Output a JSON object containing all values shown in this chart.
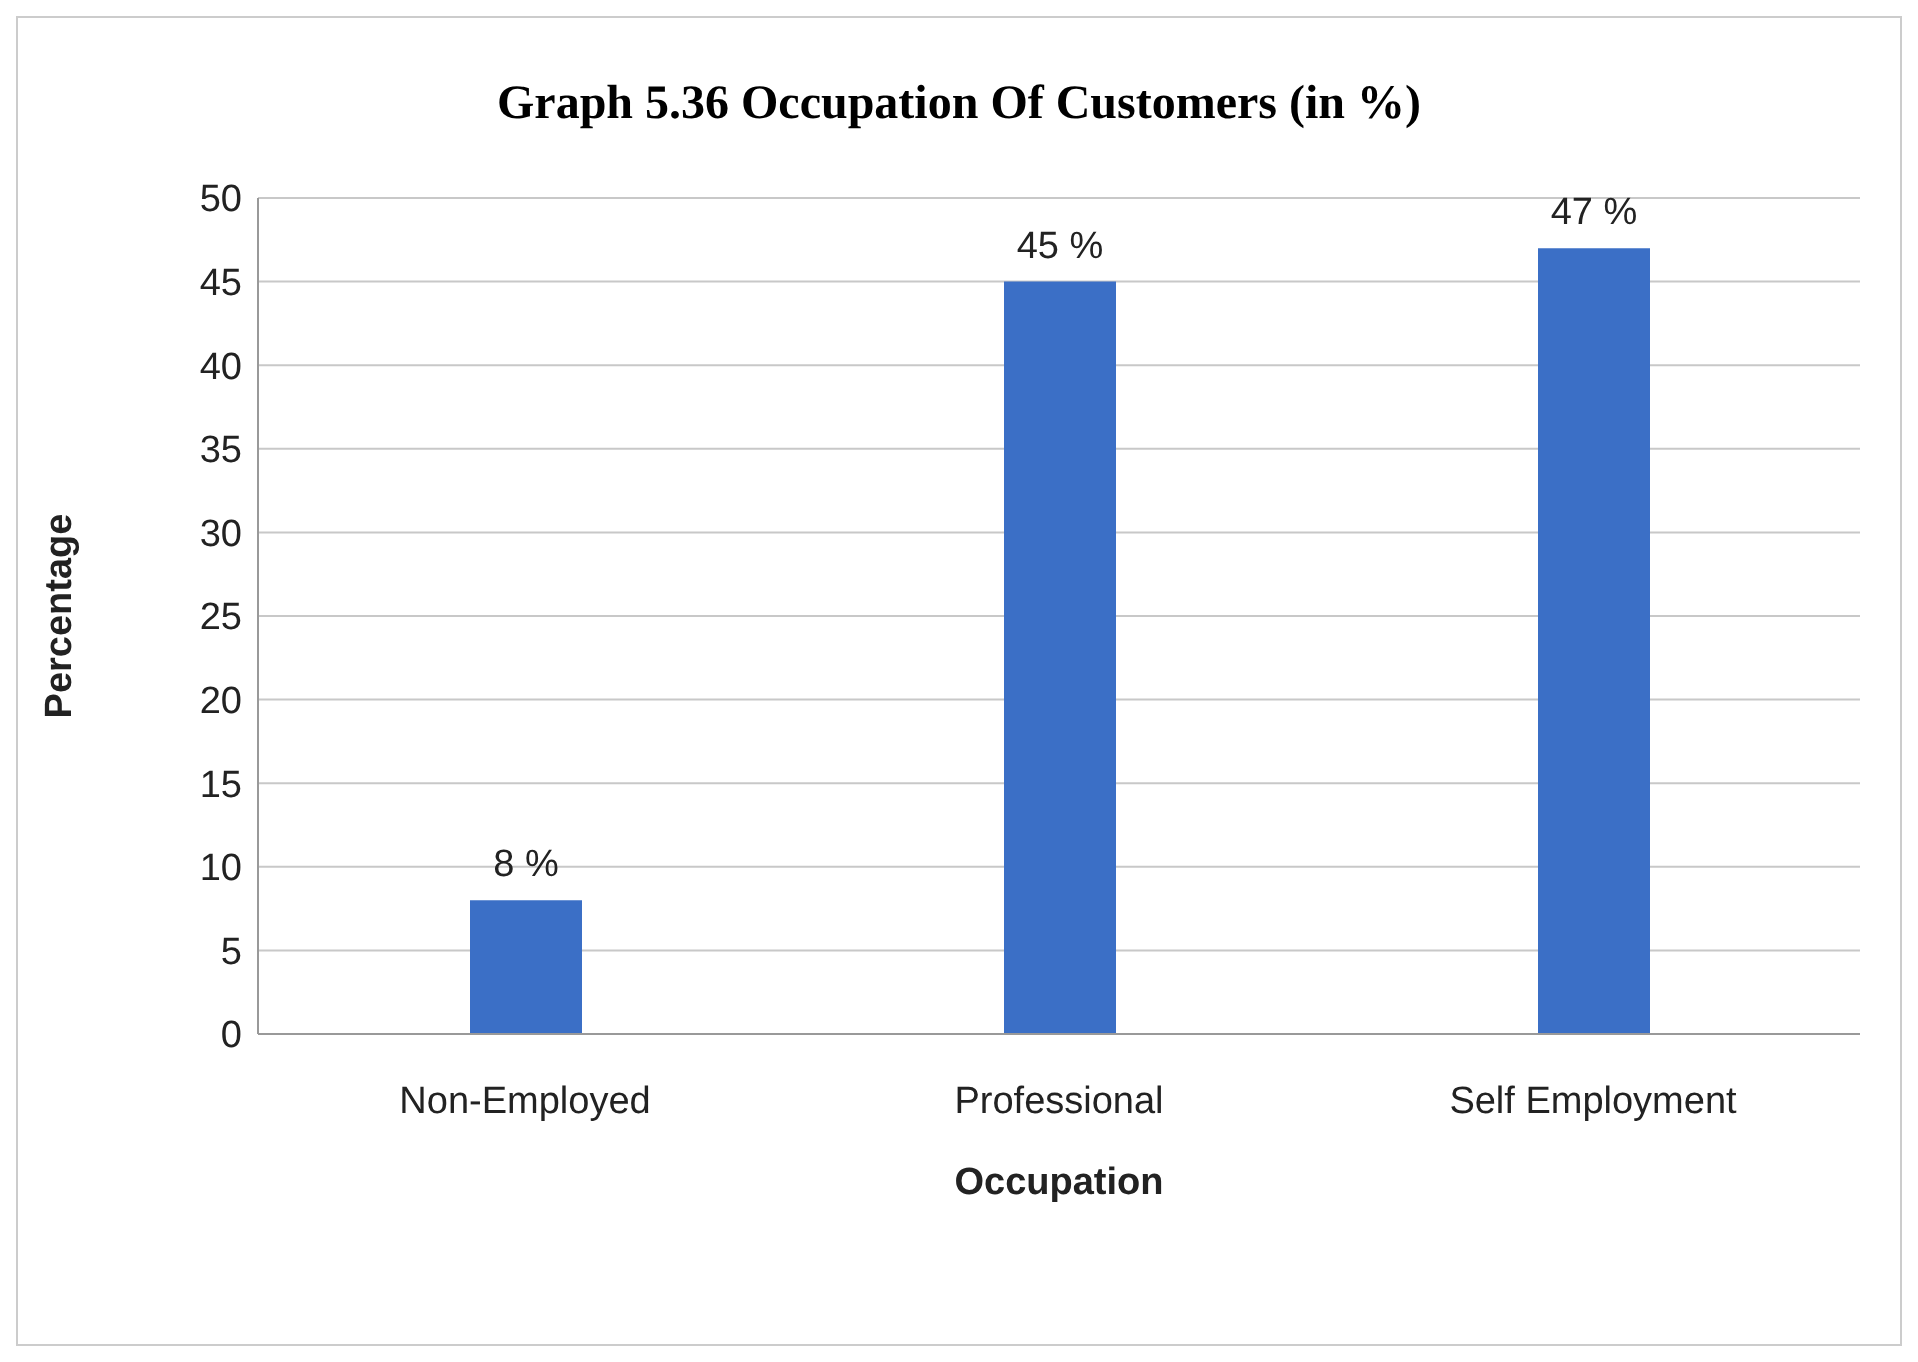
{
  "chart_data": {
    "type": "bar",
    "title": "Graph 5.36  Occupation Of Customers (in %)",
    "xlabel": "Occupation",
    "ylabel": "Percentage",
    "categories": [
      "Non-Employed",
      "Professional",
      "Self Employment"
    ],
    "values": [
      8,
      45,
      47
    ],
    "value_labels": [
      "8 %",
      "45 %",
      "47 %"
    ],
    "color": "#3b6fc6",
    "ylim": [
      0,
      50
    ],
    "yticks": [
      0,
      5,
      10,
      15,
      20,
      25,
      30,
      35,
      40,
      45,
      50
    ],
    "grid": "y",
    "legend": false
  }
}
